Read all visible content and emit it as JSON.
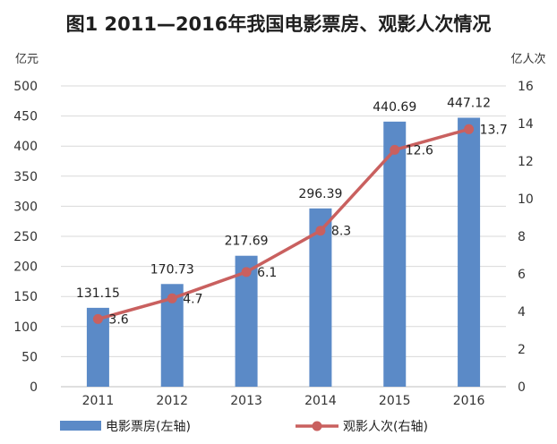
{
  "chart_data": {
    "type": "bar",
    "title": "图1 2011—2016年我国电影票房、观影人次情况",
    "categories": [
      "2011",
      "2012",
      "2013",
      "2014",
      "2015",
      "2016"
    ],
    "series": [
      {
        "name": "电影票房(左轴)",
        "type": "bar",
        "axis": "left",
        "values": [
          131.15,
          170.73,
          217.69,
          296.39,
          440.69,
          447.12
        ],
        "labels": [
          "131.15",
          "170.73",
          "217.69",
          "296.39",
          "440.69",
          "447.12"
        ]
      },
      {
        "name": "观影人次(右轴)",
        "type": "line",
        "axis": "right",
        "values": [
          3.6,
          4.7,
          6.1,
          8.3,
          12.6,
          13.7
        ],
        "labels": [
          "3.6",
          "4.7",
          "6.1",
          "8.3",
          "12.6",
          "13.7"
        ]
      }
    ],
    "ylabel_left": "亿元",
    "ylabel_right": "亿人次",
    "ylim_left": [
      0,
      500
    ],
    "yticks_left": [
      "500",
      "450",
      "400",
      "350",
      "300",
      "250",
      "200",
      "150",
      "100",
      "50",
      "0"
    ],
    "ylim_right": [
      0,
      16
    ],
    "yticks_right": [
      "16",
      "14",
      "12",
      "10",
      "8",
      "6",
      "4",
      "2",
      "0"
    ],
    "grid": true,
    "legend_position": "bottom",
    "colors": {
      "bar": "#5b8ac7",
      "line": "#c9605f",
      "grid": "#d9d9d9",
      "axis": "#bfbfbf"
    }
  }
}
